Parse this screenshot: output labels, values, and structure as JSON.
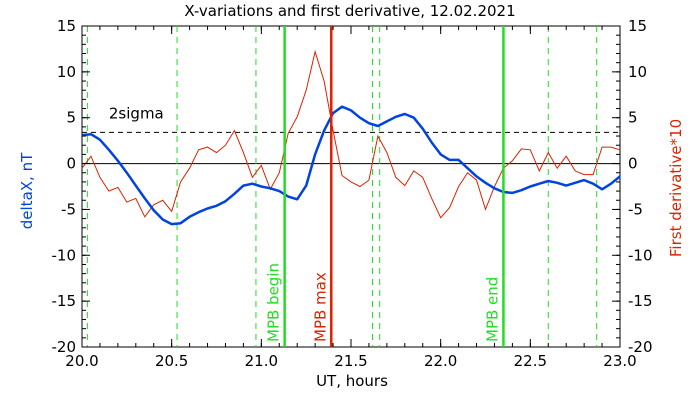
{
  "chart_data": {
    "type": "line",
    "title": "X-variations and first derivative, 12.02.2021",
    "xlabel": "UT, hours",
    "ylabel_left": "deltaX, nT",
    "ylabel_right": "First derivative*10",
    "xlim": [
      20.0,
      23.0
    ],
    "ylim": [
      -20,
      15
    ],
    "xticks": [
      "20.0",
      "20.5",
      "21.0",
      "21.5",
      "22.0",
      "22.5",
      "23.0"
    ],
    "yticks": [
      "15",
      "10",
      "5",
      "0",
      "-5",
      "-10",
      "-15",
      "-20"
    ],
    "colors": {
      "deltaX": "#0044dd",
      "derivative": "#dd2200",
      "mpb": "#22dd22",
      "mpb_max": "#dd2200"
    },
    "series": [
      {
        "name": "deltaX, nT",
        "x": [
          20.0,
          20.05,
          20.1,
          20.15,
          20.2,
          20.25,
          20.3,
          20.35,
          20.4,
          20.45,
          20.5,
          20.55,
          20.6,
          20.65,
          20.7,
          20.75,
          20.8,
          20.85,
          20.9,
          20.95,
          21.0,
          21.05,
          21.1,
          21.15,
          21.2,
          21.25,
          21.3,
          21.35,
          21.4,
          21.45,
          21.5,
          21.55,
          21.6,
          21.65,
          21.7,
          21.75,
          21.8,
          21.85,
          21.9,
          21.95,
          22.0,
          22.05,
          22.1,
          22.15,
          22.2,
          22.25,
          22.3,
          22.35,
          22.4,
          22.45,
          22.5,
          22.55,
          22.6,
          22.65,
          22.7,
          22.75,
          22.8,
          22.85,
          22.9,
          22.95,
          23.0
        ],
        "values": [
          3.1,
          3.2,
          2.6,
          1.5,
          0.3,
          -1.0,
          -2.4,
          -3.8,
          -5.1,
          -6.1,
          -6.6,
          -6.5,
          -5.8,
          -5.3,
          -4.9,
          -4.6,
          -4.1,
          -3.3,
          -2.4,
          -2.2,
          -2.5,
          -2.7,
          -3.0,
          -3.6,
          -3.9,
          -2.4,
          1.0,
          3.6,
          5.5,
          6.2,
          5.8,
          5.0,
          4.4,
          4.1,
          4.6,
          5.1,
          5.4,
          5.0,
          3.8,
          2.3,
          1.0,
          0.4,
          0.4,
          -0.5,
          -1.4,
          -2.1,
          -2.7,
          -3.1,
          -3.2,
          -2.9,
          -2.5,
          -2.2,
          -1.9,
          -2.1,
          -2.4,
          -2.1,
          -1.8,
          -2.2,
          -2.8,
          -2.2,
          -1.4
        ]
      },
      {
        "name": "First derivative*10",
        "x": [
          20.0,
          20.05,
          20.1,
          20.15,
          20.2,
          20.25,
          20.3,
          20.35,
          20.4,
          20.45,
          20.5,
          20.55,
          20.6,
          20.65,
          20.7,
          20.75,
          20.8,
          20.85,
          20.9,
          20.95,
          21.0,
          21.05,
          21.1,
          21.15,
          21.2,
          21.25,
          21.3,
          21.35,
          21.4,
          21.45,
          21.5,
          21.55,
          21.6,
          21.65,
          21.7,
          21.75,
          21.8,
          21.85,
          21.9,
          21.95,
          22.0,
          22.05,
          22.1,
          22.15,
          22.2,
          22.25,
          22.3,
          22.35,
          22.4,
          22.45,
          22.5,
          22.55,
          22.6,
          22.65,
          22.7,
          22.75,
          22.8,
          22.85,
          22.9,
          22.95,
          23.0
        ],
        "values": [
          -0.5,
          0.8,
          -1.5,
          -3.0,
          -2.6,
          -4.2,
          -3.8,
          -5.8,
          -4.5,
          -4.0,
          -5.2,
          -2.0,
          -0.5,
          1.5,
          1.8,
          1.2,
          2.0,
          3.6,
          1.2,
          -1.5,
          -0.2,
          -2.8,
          -1.0,
          3.3,
          5.1,
          8.0,
          12.2,
          9.0,
          3.6,
          -1.3,
          -2.0,
          -2.5,
          -1.8,
          3.0,
          1.2,
          -1.5,
          -2.4,
          -0.8,
          -1.5,
          -3.8,
          -5.9,
          -4.8,
          -2.5,
          -1.0,
          -1.8,
          -5.0,
          -2.5,
          -0.5,
          0.3,
          1.6,
          1.5,
          -0.8,
          1.2,
          -0.5,
          0.8,
          -0.8,
          -1.2,
          -1.2,
          1.8,
          1.8,
          1.5
        ]
      }
    ],
    "reference_lines": {
      "zero": 0,
      "sigma2": 3.4,
      "sigma2_label": "2sigma"
    },
    "mpb_lines": [
      {
        "x": 21.13,
        "label": "MPB begin",
        "color": "#22dd22"
      },
      {
        "x": 21.39,
        "label": "MPB max",
        "color": "#dd2200"
      },
      {
        "x": 22.35,
        "label": "MPB end",
        "color": "#22dd22"
      }
    ],
    "dashed_markers": [
      20.03,
      20.53,
      20.97,
      21.62,
      21.66,
      22.6,
      22.87
    ],
    "dashed_marker_color": "#22dd22",
    "grid": false,
    "legend": "none"
  }
}
